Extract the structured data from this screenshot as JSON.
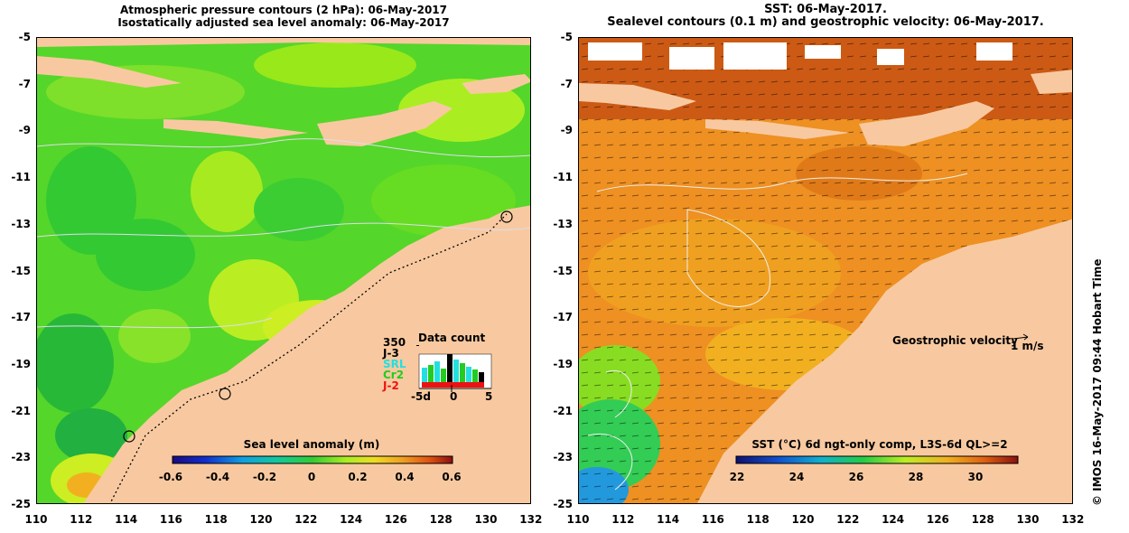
{
  "left": {
    "title_line1": "Atmospheric pressure contours (2 hPa): 06-May-2017",
    "title_line2": "Isostatically adjusted sea level anomaly: 06-May-2017",
    "colorbar_label": "Sea level anomaly (m)",
    "colorbar_ticks": [
      "-0.6",
      "-0.4",
      "-0.2",
      "0",
      "0.2",
      "0.4",
      "0.6"
    ],
    "data_count": {
      "title": "Data count",
      "max_label": "350",
      "series": [
        {
          "name": "J-3",
          "color": "#000000"
        },
        {
          "name": "SRL",
          "color": "#22e0e0"
        },
        {
          "name": "Cr2",
          "color": "#22cc22"
        },
        {
          "name": "J-2",
          "color": "#ee1111"
        }
      ],
      "x_ticks": [
        "-5d",
        "0",
        "5"
      ]
    }
  },
  "right": {
    "title_line1": "SST: 06-May-2017.",
    "title_line2": "Sealevel contours (0.1 m) and geostrophic velocity: 06-May-2017.",
    "colorbar_label": "SST (°C) 6d ngt-only comp, L3S-6d QL>=2",
    "colorbar_ticks": [
      "22",
      "24",
      "26",
      "28",
      "30"
    ],
    "velocity_label": "Geostrophic velocity",
    "velocity_unit": "1 m/s"
  },
  "y_ticks": [
    "-5",
    "-7",
    "-9",
    "-11",
    "-13",
    "-15",
    "-17",
    "-19",
    "-21",
    "-23",
    "-25"
  ],
  "x_ticks": [
    "110",
    "112",
    "114",
    "116",
    "118",
    "120",
    "122",
    "124",
    "126",
    "128",
    "130",
    "132"
  ],
  "footer": "© IMOS 16-May-2017 09:44 Hobart Time",
  "colors": {
    "land": "#f8c9a0",
    "sla_greens": [
      "#33cc33",
      "#66dd22",
      "#99e81a",
      "#ccee22"
    ],
    "sst_orange": "#ee8a22",
    "sst_blue": "#2299dd"
  }
}
